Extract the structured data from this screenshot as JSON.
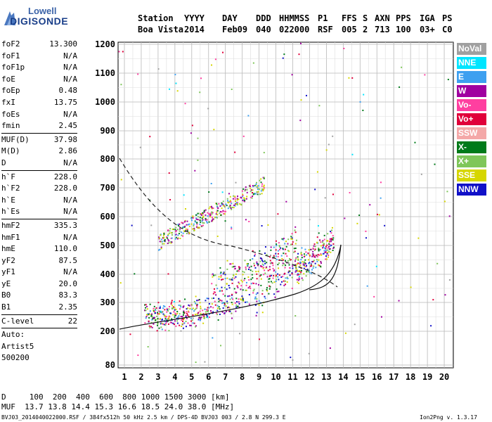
{
  "logo": {
    "line1": "Lowell",
    "line2": "DIGISONDE"
  },
  "header": {
    "row1": [
      "Station",
      "YYYY",
      "DAY",
      "DDD",
      "HHMMSS",
      "P1",
      "FFS",
      "S",
      "AXN",
      "PPS",
      "IGA",
      "PS"
    ],
    "row2": [
      "Boa Vista",
      "2014",
      "Feb09",
      "040",
      "022000",
      "RSF",
      "005",
      "2",
      "713",
      "100",
      "03+",
      "C0"
    ]
  },
  "params": {
    "group1": [
      {
        "k": "foF2",
        "v": "13.300"
      },
      {
        "k": "foF1",
        "v": "N/A"
      },
      {
        "k": "foF1p",
        "v": "N/A"
      },
      {
        "k": "foE",
        "v": "N/A"
      },
      {
        "k": "foEp",
        "v": "0.48"
      },
      {
        "k": "fxI",
        "v": "13.75"
      },
      {
        "k": "foEs",
        "v": "N/A"
      },
      {
        "k": "fmin",
        "v": "2.45"
      }
    ],
    "group2": [
      {
        "k": "MUF(D)",
        "v": "37.98"
      },
      {
        "k": "M(D)",
        "v": "2.86"
      },
      {
        "k": "D",
        "v": "N/A"
      }
    ],
    "group3": [
      {
        "k": "h`F",
        "v": "228.0"
      },
      {
        "k": "h`F2",
        "v": "228.0"
      },
      {
        "k": "h`E",
        "v": "N/A"
      },
      {
        "k": "h`Es",
        "v": "N/A"
      }
    ],
    "group4": [
      {
        "k": "hmF2",
        "v": "335.3"
      },
      {
        "k": "hmF1",
        "v": "N/A"
      },
      {
        "k": "hmE",
        "v": "110.0"
      },
      {
        "k": "yF2",
        "v": "87.5"
      },
      {
        "k": "yF1",
        "v": "N/A"
      },
      {
        "k": "yE",
        "v": "20.0"
      },
      {
        "k": "B0",
        "v": "83.3"
      },
      {
        "k": "B1",
        "v": "2.35"
      }
    ],
    "clevel": {
      "k": "C-level",
      "v": "22"
    },
    "auto": [
      "Auto:",
      "Artist5",
      "500200"
    ]
  },
  "legend": [
    {
      "label": "NoVal",
      "color": "#a0a0a0"
    },
    {
      "label": "NNE",
      "color": "#00e5ff"
    },
    {
      "label": "E",
      "color": "#3ea0f0"
    },
    {
      "label": "W",
      "color": "#a000a0"
    },
    {
      "label": "Vo-",
      "color": "#ff3fa0"
    },
    {
      "label": "Vo+",
      "color": "#e0003a"
    },
    {
      "label": "SSW",
      "color": "#f4a8a8"
    },
    {
      "label": "X-",
      "color": "#007a1a"
    },
    {
      "label": "X+",
      "color": "#7fc65a"
    },
    {
      "label": "SSE",
      "color": "#d6d600"
    },
    {
      "label": "NNW",
      "color": "#1010c8"
    }
  ],
  "plot": {
    "y_ticks": [
      "1200",
      "1100",
      "1000",
      "900",
      "800",
      "700",
      "600",
      "500",
      "400",
      "300",
      "200",
      "80"
    ],
    "x_ticks": [
      "1",
      "2",
      "3",
      "4",
      "5",
      "6",
      "7",
      "8",
      "9",
      "10",
      "11",
      "12",
      "13",
      "14",
      "15",
      "16",
      "17",
      "18",
      "19",
      "20"
    ]
  },
  "footer": {
    "d_line": "D     100  200  400  600  800 1000 1500 3000 [km]",
    "muf_line": "MUF  13.7 13.8 14.4 15.3 16.6 18.5 24.0 38.0 [MHz]",
    "file_line": "BVJ03_2014040022000.RSF / 384fx512h 50 kHz 2.5 km / DPS-4D BVJ03 003 / 2.8 N 299.3 E",
    "version": "Ion2Png v. 1.3.17"
  }
}
